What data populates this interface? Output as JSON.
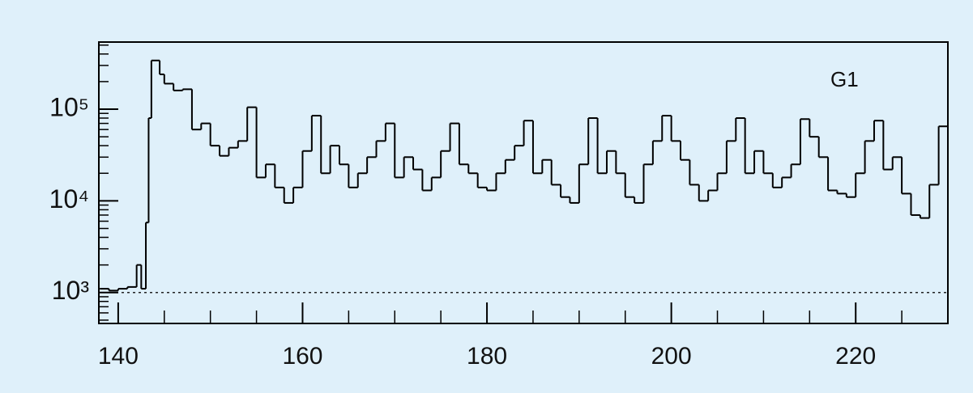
{
  "chart_data": {
    "type": "histogram",
    "annotation": "G1",
    "bins": [
      138,
      139,
      140,
      141,
      142,
      142.5,
      143,
      143.3,
      143.6,
      144.5,
      145,
      146,
      147,
      148,
      149,
      150,
      151,
      152,
      153,
      154,
      155,
      156,
      157,
      158,
      159,
      160,
      161,
      162,
      163,
      164,
      165,
      166,
      167,
      168,
      169,
      170,
      171,
      172,
      173,
      174,
      175,
      176,
      177,
      178,
      179,
      180,
      181,
      182,
      183,
      184,
      185,
      186,
      187,
      188,
      189,
      190,
      191,
      192,
      193,
      194,
      195,
      196,
      197,
      198,
      199,
      200,
      201,
      202,
      203,
      204,
      205,
      206,
      207,
      208,
      209,
      210,
      211,
      212,
      213,
      214,
      215,
      216,
      217,
      218,
      219,
      220,
      221,
      222,
      223,
      224,
      225,
      226,
      227,
      228,
      229,
      230
    ],
    "values": [
      1100,
      1050,
      1100,
      1150,
      2000,
      1100,
      5800,
      80000,
      340000,
      240000,
      190000,
      160000,
      165000,
      60000,
      70000,
      40000,
      31000,
      38000,
      45000,
      105000,
      18000,
      25000,
      14000,
      9500,
      14000,
      35000,
      85000,
      20000,
      40000,
      25000,
      14000,
      20000,
      30000,
      45000,
      70000,
      18000,
      30000,
      22000,
      13000,
      18000,
      35000,
      70000,
      25000,
      20000,
      14000,
      13000,
      20000,
      28000,
      40000,
      75000,
      20000,
      28000,
      15000,
      11000,
      9500,
      25000,
      80000,
      20000,
      35000,
      20000,
      11000,
      9500,
      25000,
      45000,
      85000,
      45000,
      28000,
      15000,
      10000,
      13000,
      20000,
      45000,
      80000,
      20000,
      35000,
      20000,
      14000,
      18000,
      25000,
      78000,
      50000,
      30000,
      13000,
      12000,
      11000,
      20000,
      45000,
      75000,
      22000,
      30000,
      12000,
      7000,
      6500,
      15000,
      65000
    ],
    "color": "#000000",
    "xlim": [
      137.9,
      230
    ],
    "xticks": [
      140,
      160,
      180,
      200,
      220
    ],
    "xminor_ticks": [
      145,
      150,
      155,
      165,
      170,
      175,
      185,
      190,
      195,
      205,
      210,
      215,
      225
    ],
    "ylim": [
      460,
      540000
    ],
    "log_y": true,
    "yticks": [
      {
        "value": 1000,
        "label": "10³"
      },
      {
        "value": 10000,
        "label": "10⁴"
      },
      {
        "value": 100000,
        "label": "10⁵"
      }
    ],
    "yminor_ticks": [
      500,
      600,
      700,
      800,
      900,
      2000,
      3000,
      4000,
      5000,
      6000,
      7000,
      8000,
      9000,
      20000,
      30000,
      40000,
      50000,
      60000,
      70000,
      80000,
      90000,
      200000,
      300000,
      400000,
      500000
    ],
    "reference_line": 1000
  }
}
